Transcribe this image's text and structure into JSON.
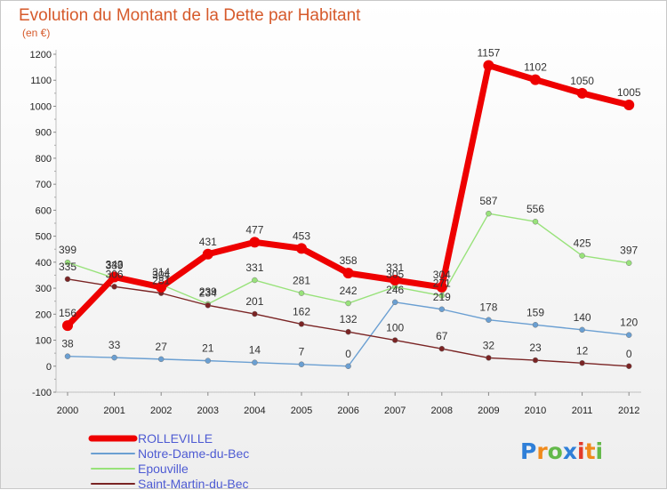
{
  "chart_data": {
    "type": "line",
    "title": "Evolution du Montant de la Dette par Habitant",
    "subtitle": "(en €)",
    "xlabel": "",
    "ylabel": "",
    "x": [
      2000,
      2001,
      2002,
      2003,
      2004,
      2005,
      2006,
      2007,
      2008,
      2009,
      2010,
      2011,
      2012
    ],
    "ylim": [
      -100,
      1200
    ],
    "yticks": [
      -100,
      0,
      100,
      200,
      300,
      400,
      500,
      600,
      700,
      800,
      900,
      1000,
      1100,
      1200
    ],
    "grid": false,
    "legend_position": "bottom-left",
    "series": [
      {
        "name": "ROLLEVILLE",
        "color": "#ee0000",
        "values": [
          156,
          343,
          304,
          431,
          477,
          453,
          358,
          331,
          304,
          1157,
          1102,
          1050,
          1005
        ]
      },
      {
        "name": "Notre-Dame-du-Bec",
        "color": "#6a9fd2",
        "values": [
          38,
          33,
          27,
          21,
          14,
          7,
          0,
          246,
          219,
          178,
          159,
          140,
          120
        ]
      },
      {
        "name": "Epouville",
        "color": "#98e27a",
        "values": [
          399,
          339,
          314,
          239,
          331,
          281,
          242,
          305,
          271,
          587,
          556,
          425,
          397
        ]
      },
      {
        "name": "Saint-Martin-du-Bec",
        "color": "#7a2424",
        "values": [
          335,
          306,
          281,
          234,
          201,
          162,
          132,
          100,
          67,
          32,
          23,
          12,
          0
        ]
      }
    ]
  },
  "logo": {
    "text": "Proxiti"
  },
  "colors": {
    "title": "#d65a2b",
    "legend_text": "#4e5bd3",
    "axis": "#c0c0c0"
  }
}
